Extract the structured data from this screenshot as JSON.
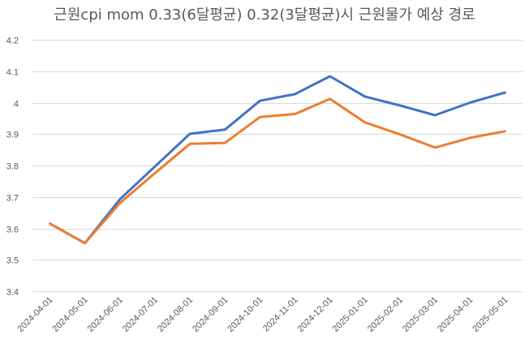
{
  "chart_data": {
    "type": "line",
    "title": "근원cpi mom 0.33(6달평균) 0.32(3달평균)시 근원물가 예상 경로",
    "xlabel": "",
    "ylabel": "",
    "ylim": [
      3.4,
      4.2
    ],
    "yticks": [
      "3.4",
      "3.5",
      "3.6",
      "3.7",
      "3.8",
      "3.9",
      "4",
      "4.1",
      "4.2"
    ],
    "ytick_values": [
      3.4,
      3.5,
      3.6,
      3.7,
      3.8,
      3.9,
      4.0,
      4.1,
      4.2
    ],
    "grid": true,
    "legend": "none",
    "categories": [
      "2024-04-01",
      "2024-05-01",
      "2024-06-01",
      "2024-07-01",
      "2024-08-01",
      "2024-09-01",
      "2024-10-01",
      "2024-11-01",
      "2024-12-01",
      "2025-01-01",
      "2025-02-01",
      "2025-03-01",
      "2025-04-01",
      "2025-05-01"
    ],
    "series": [
      {
        "name": "6달평균",
        "color": "#4472C4",
        "values": [
          3.615,
          3.553,
          3.693,
          3.797,
          3.901,
          3.914,
          4.006,
          4.027,
          4.084,
          4.019,
          3.991,
          3.96,
          4.0,
          4.032
        ]
      },
      {
        "name": "3달평균",
        "color": "#ED7D31",
        "values": [
          3.615,
          3.553,
          3.681,
          3.776,
          3.869,
          3.872,
          3.954,
          3.964,
          4.012,
          3.937,
          3.899,
          3.857,
          3.888,
          3.909
        ]
      }
    ]
  }
}
